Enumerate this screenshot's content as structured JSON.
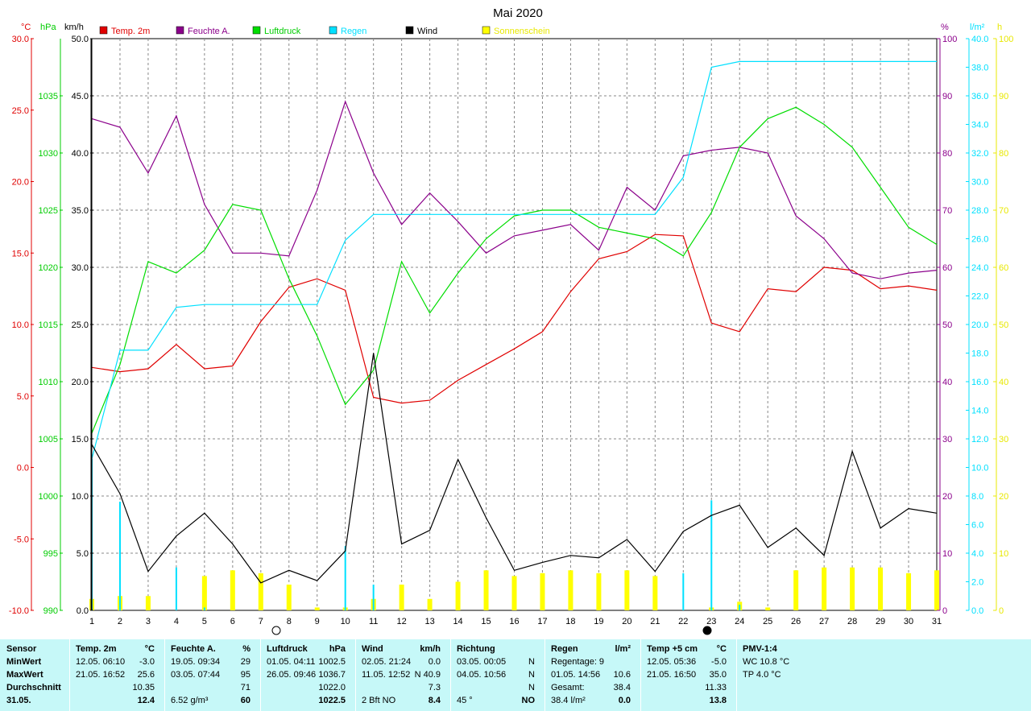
{
  "title": "Mai 2020",
  "colors": {
    "temp": "#e00000",
    "humidity": "#8b008b",
    "pressure": "#00dd00",
    "rain": "#00e0ff",
    "wind": "#000000",
    "sun": "#ffff00"
  },
  "axes": {
    "left": [
      {
        "unit": "°C",
        "color": "#e00000",
        "ticks": [
          "30.0",
          "25.0",
          "20.0",
          "15.0",
          "10.0",
          "5.0",
          "0.0",
          "-5.0",
          "-10.0"
        ]
      },
      {
        "unit": "hPa",
        "color": "#00cc00",
        "ticks": [
          "1035",
          "1030",
          "1025",
          "1020",
          "1015",
          "1010",
          "1005",
          "1000",
          "995",
          "990"
        ]
      },
      {
        "unit": "km/h",
        "color": "#000000",
        "ticks": [
          "50.0",
          "45.0",
          "40.0",
          "35.0",
          "30.0",
          "25.0",
          "20.0",
          "15.0",
          "10.0",
          "5.0",
          "0.0"
        ]
      }
    ],
    "right": [
      {
        "unit": "%",
        "color": "#8b008b",
        "ticks": [
          "100",
          "90",
          "80",
          "70",
          "60",
          "50",
          "40",
          "30",
          "20",
          "10",
          "0"
        ]
      },
      {
        "unit": "l/m²",
        "color": "#00e0ff",
        "ticks": [
          "40.0",
          "38.0",
          "36.0",
          "34.0",
          "32.0",
          "30.0",
          "28.0",
          "26.0",
          "24.0",
          "22.0",
          "20.0",
          "18.0",
          "16.0",
          "14.0",
          "12.0",
          "10.0",
          "8.0",
          "6.0",
          "4.0",
          "2.0",
          "0.0"
        ]
      },
      {
        "unit": "h",
        "color": "#e8e800",
        "ticks": [
          "100",
          "90",
          "80",
          "70",
          "60",
          "50",
          "40",
          "30",
          "20",
          "10",
          "0"
        ]
      }
    ],
    "x_ticks": [
      "1",
      "2",
      "3",
      "4",
      "5",
      "6",
      "7",
      "8",
      "9",
      "10",
      "11",
      "12",
      "13",
      "14",
      "15",
      "16",
      "17",
      "18",
      "19",
      "20",
      "21",
      "22",
      "23",
      "24",
      "25",
      "26",
      "27",
      "28",
      "29",
      "30",
      "31"
    ]
  },
  "legend": [
    "Temp. 2m",
    "Feuchte A.",
    "Luftdruck",
    "Regen",
    "Wind",
    "Sonnenschein"
  ],
  "chart_data": {
    "type": "line",
    "title": "Mai 2020",
    "x": [
      1,
      2,
      3,
      4,
      5,
      6,
      7,
      8,
      9,
      10,
      11,
      12,
      13,
      14,
      15,
      16,
      17,
      18,
      19,
      20,
      21,
      22,
      23,
      24,
      25,
      26,
      27,
      28,
      29,
      30,
      31
    ],
    "ranges": {
      "temp": [
        -10,
        30
      ],
      "pressure": [
        990,
        1040
      ],
      "wind": [
        0,
        50
      ],
      "humidity": [
        0,
        100
      ],
      "rain": [
        0,
        40
      ],
      "sun": [
        0,
        100
      ]
    },
    "series": [
      {
        "name": "Temp. 2m",
        "axis": "temp",
        "values": [
          7.0,
          6.7,
          6.9,
          8.6,
          6.9,
          7.1,
          10.2,
          12.6,
          13.2,
          12.4,
          4.9,
          4.5,
          4.7,
          6.1,
          7.2,
          8.3,
          9.5,
          12.3,
          14.6,
          15.1,
          16.3,
          16.2,
          10.1,
          9.5,
          12.5,
          12.3,
          14.0,
          13.8,
          12.5,
          12.7,
          12.4
        ]
      },
      {
        "name": "Feuchte A.",
        "axis": "humidity",
        "values": [
          86,
          84.5,
          76.5,
          86.5,
          71,
          62.5,
          62.5,
          62,
          73.5,
          89,
          76.5,
          67.5,
          73,
          68,
          62.5,
          65.5,
          66.5,
          67.5,
          63,
          74,
          70,
          79.5,
          80.5,
          81,
          80,
          69,
          65,
          59,
          58,
          59,
          59.5
        ]
      },
      {
        "name": "Luftdruck",
        "axis": "pressure",
        "values": [
          1005.5,
          1011.5,
          1020.5,
          1019.5,
          1021.5,
          1025.5,
          1025,
          1019,
          1014,
          1008,
          1011,
          1020.5,
          1016,
          1019.5,
          1022.5,
          1024.5,
          1025,
          1025,
          1023.5,
          1023,
          1022.5,
          1021,
          1024.8,
          1030.5,
          1033,
          1034,
          1032.5,
          1030.5,
          1027,
          1023.5,
          1022
        ]
      },
      {
        "name": "Regen",
        "axis": "rain",
        "values": [
          10.6,
          18.2,
          18.2,
          21.2,
          21.4,
          21.4,
          21.4,
          21.4,
          21.4,
          25.9,
          27.7,
          27.7,
          27.7,
          27.7,
          27.7,
          27.7,
          27.7,
          27.7,
          27.7,
          27.7,
          27.7,
          30.3,
          38.0,
          38.4,
          38.4,
          38.4,
          38.4,
          38.4,
          38.4,
          38.4,
          38.4
        ]
      },
      {
        "name": "Wind",
        "axis": "wind",
        "values": [
          14.5,
          10.2,
          3.4,
          6.5,
          8.5,
          5.8,
          2.4,
          3.5,
          2.6,
          5.2,
          22.5,
          5.8,
          7.0,
          13.2,
          8.1,
          3.5,
          4.2,
          4.8,
          4.6,
          6.2,
          3.4,
          6.9,
          8.3,
          9.2,
          5.5,
          7.2,
          4.8,
          13.9,
          7.2,
          8.9,
          8.5
        ]
      },
      {
        "name": "Sonnenschein",
        "axis": "sun",
        "kind": "bar",
        "values": [
          2,
          2.5,
          2.5,
          0,
          6,
          7,
          6.5,
          4.5,
          0.5,
          0.5,
          2,
          4.5,
          2,
          5,
          7,
          6,
          6.5,
          7,
          6.5,
          7,
          6,
          0,
          0.5,
          1.5,
          0.5,
          7,
          7.5,
          7.5,
          7.5,
          6.5,
          7
        ]
      },
      {
        "name": "Regen",
        "axis": "rain",
        "kind": "daily",
        "values": [
          10.6,
          7.6,
          0,
          3.0,
          0.2,
          0,
          0,
          0,
          0,
          4.5,
          1.8,
          0,
          0,
          0,
          0,
          0,
          0,
          0,
          0,
          0,
          0,
          2.6,
          7.7,
          0.4,
          0,
          0,
          0,
          0,
          0,
          0,
          0
        ]
      }
    ]
  },
  "table": {
    "row_labels": [
      "Sensor",
      "MinWert",
      "MaxWert",
      "Durchschnitt",
      "31.05."
    ],
    "columns": [
      {
        "header": "Temp. 2m",
        "unit": "°C",
        "rows": [
          [
            "12.05.  06:10",
            "-3.0"
          ],
          [
            "21.05.  16:52",
            "25.6"
          ],
          [
            "",
            "10.35"
          ],
          [
            "",
            "12.4"
          ]
        ]
      },
      {
        "header": "Feuchte A.",
        "unit": "%",
        "rows": [
          [
            "19.05.  09:34",
            "29"
          ],
          [
            "03.05.  07:44",
            "95"
          ],
          [
            "",
            "71"
          ],
          [
            "6.52 g/m³",
            "60"
          ]
        ]
      },
      {
        "header": "Luftdruck",
        "unit": "hPa",
        "rows": [
          [
            "01.05.  04:11",
            "1002.5"
          ],
          [
            "26.05.  09:46",
            "1036.7"
          ],
          [
            "",
            "1022.0"
          ],
          [
            "",
            "1022.5"
          ]
        ]
      },
      {
        "header": "Wind",
        "unit": "km/h",
        "rows": [
          [
            "02.05.  21:24",
            "0.0"
          ],
          [
            "11.05.  12:52",
            "N 40.9"
          ],
          [
            "",
            "7.3"
          ],
          [
            "2 Bft NO",
            "8.4"
          ]
        ]
      },
      {
        "header": "Richtung",
        "unit": "",
        "rows": [
          [
            "03.05.  00:05",
            "N"
          ],
          [
            "04.05.  10:56",
            "N"
          ],
          [
            "",
            "N"
          ],
          [
            "45 °",
            "NO"
          ]
        ]
      },
      {
        "header": "Regen",
        "unit": "l/m²",
        "rows": [
          [
            "Regentage: 9",
            ""
          ],
          [
            "01.05.  14:56",
            "10.6"
          ],
          [
            "Gesamt:",
            "38.4"
          ],
          [
            "38.4 l/m²",
            "0.0"
          ]
        ]
      },
      {
        "header": "Temp +5 cm",
        "unit": "°C",
        "rows": [
          [
            "12.05.  05:36",
            "-5.0"
          ],
          [
            "21.05.  16:50",
            "35.0"
          ],
          [
            "",
            "11.33"
          ],
          [
            "",
            "13.8"
          ]
        ]
      },
      {
        "header": "PMV-1:4",
        "unit": "",
        "rows": [
          [
            "WC 10.8 °C",
            ""
          ],
          [
            "TP 4.0 °C",
            ""
          ],
          [
            "",
            ""
          ],
          [
            "",
            ""
          ]
        ]
      }
    ]
  }
}
